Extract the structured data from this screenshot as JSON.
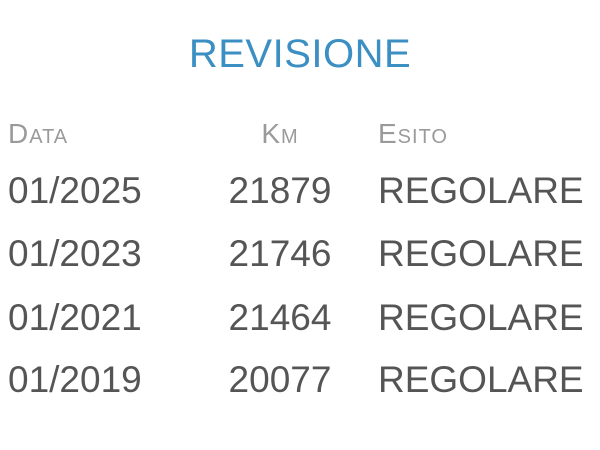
{
  "title": "REVISIONE",
  "headers": [
    "Data",
    "Km",
    "Esito"
  ],
  "rows": [
    {
      "data": "01/2025",
      "km": "21879",
      "esito": "REGOLARE"
    },
    {
      "data": "01/2023",
      "km": "21746",
      "esito": "REGOLARE"
    },
    {
      "data": "01/2021",
      "km": "21464",
      "esito": "REGOLARE"
    },
    {
      "data": "01/2019",
      "km": "20077",
      "esito": "REGOLARE"
    }
  ],
  "colors": {
    "title": "#3b8fc2",
    "header": "#9a9a9a",
    "text": "#555555"
  }
}
